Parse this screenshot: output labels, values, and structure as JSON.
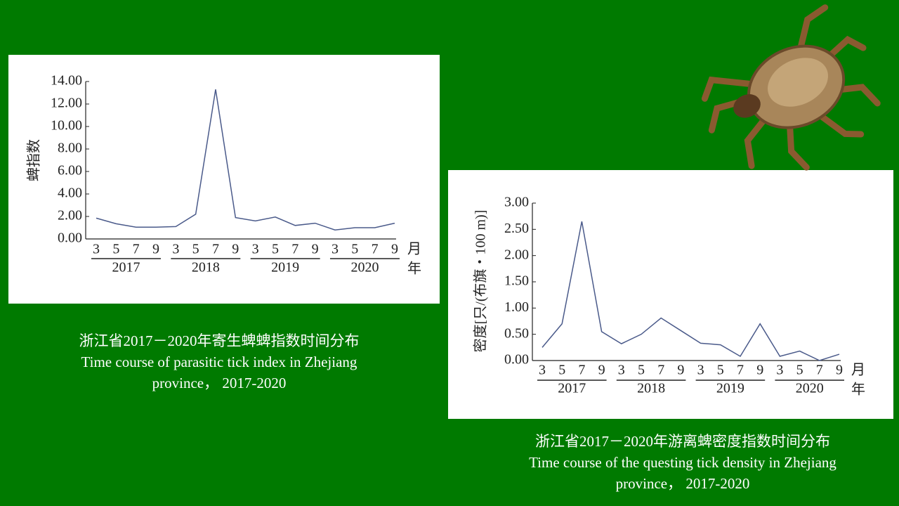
{
  "chart_data": [
    {
      "type": "line",
      "ylabel": "蜱指数",
      "categories": [
        "3",
        "5",
        "7",
        "9",
        "3",
        "5",
        "7",
        "9",
        "3",
        "5",
        "7",
        "9",
        "3",
        "5",
        "7",
        "9"
      ],
      "groups": [
        "2017",
        "2018",
        "2019",
        "2020"
      ],
      "xlabel_month": "月",
      "xlabel_year": "年",
      "values": [
        1.85,
        1.35,
        1.05,
        1.05,
        1.1,
        2.2,
        13.3,
        1.9,
        1.6,
        1.95,
        1.2,
        1.4,
        0.8,
        1.0,
        1.0,
        1.4
      ],
      "color": "#4a5a8a",
      "ylim": [
        0,
        14
      ],
      "yticks": [
        {
          "value": 0,
          "label": "0.00"
        },
        {
          "value": 2,
          "label": "2.00"
        },
        {
          "value": 4,
          "label": "4.00"
        },
        {
          "value": 6,
          "label": "6.00"
        },
        {
          "value": 8,
          "label": "8.00"
        },
        {
          "value": 10,
          "label": "10.00"
        },
        {
          "value": 12,
          "label": "12.00"
        },
        {
          "value": 14,
          "label": "14.00"
        }
      ],
      "caption": [
        "浙江省2017－2020年寄生蜱蜱指数时间分布",
        "Time course of parasitic tick index in Zhejiang province， 2017-2020"
      ]
    },
    {
      "type": "line",
      "ylabel": "密度[只/(布旗・100 m)]",
      "categories": [
        "3",
        "5",
        "7",
        "9",
        "3",
        "5",
        "7",
        "9",
        "3",
        "5",
        "7",
        "9",
        "3",
        "5",
        "7",
        "9"
      ],
      "groups": [
        "2017",
        "2018",
        "2019",
        "2020"
      ],
      "xlabel_month": "月",
      "xlabel_year": "年",
      "values": [
        0.25,
        0.7,
        2.65,
        0.55,
        0.32,
        0.5,
        0.81,
        0.57,
        0.33,
        0.3,
        0.08,
        0.7,
        0.08,
        0.18,
        0.0,
        0.12
      ],
      "color": "#4a5a8a",
      "ylim": [
        0,
        3
      ],
      "yticks": [
        {
          "value": 0,
          "label": "0.00"
        },
        {
          "value": 0.5,
          "label": "0.50"
        },
        {
          "value": 1,
          "label": "1.00"
        },
        {
          "value": 1.5,
          "label": "1.50"
        },
        {
          "value": 2,
          "label": "2.00"
        },
        {
          "value": 2.5,
          "label": "2.50"
        },
        {
          "value": 3,
          "label": "3.00"
        }
      ],
      "caption": [
        "浙江省2017－2020年游离蜱密度指数时间分布",
        "Time course of the questing tick density in Zhejiang province， 2017-2020"
      ]
    }
  ]
}
